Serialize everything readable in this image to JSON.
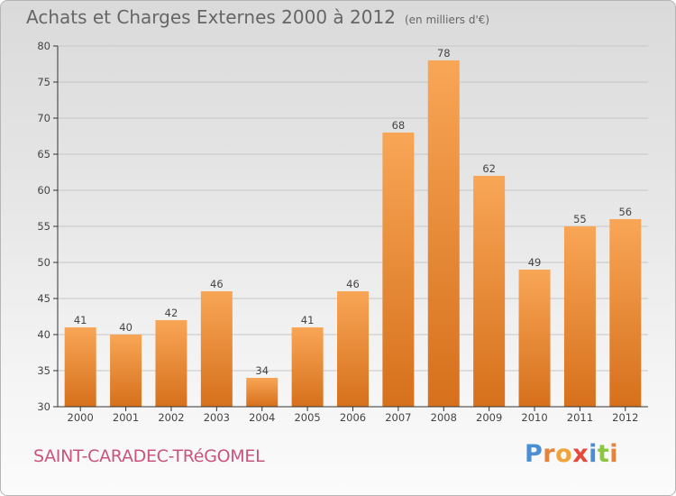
{
  "header": {
    "title": "Achats et Charges Externes 2000 à 2012",
    "subtitle": "(en milliers d'€)"
  },
  "footer": {
    "commune": "SAINT-CARADEC-TRéGOMEL",
    "brand": "Proxiti",
    "brand_letters": [
      {
        "ch": "P",
        "color": "#4a8fd6"
      },
      {
        "ch": "r",
        "color": "#e8823a"
      },
      {
        "ch": "o",
        "color": "#f0a33a"
      },
      {
        "ch": "x",
        "color": "#e6483c"
      },
      {
        "ch": "i",
        "color": "#4a8fd6"
      },
      {
        "ch": "t",
        "color": "#8cc63f"
      },
      {
        "ch": "i",
        "color": "#e8823a"
      }
    ]
  },
  "colors": {
    "bar_light": "#f8a656",
    "bar_dark": "#d6701c",
    "grid": "#c6c6c6",
    "axis": "#333333",
    "text": "#444444"
  },
  "chart_data": {
    "type": "bar",
    "title": "Achats et Charges Externes 2000 à 2012",
    "subtitle": "(en milliers d'€)",
    "categories": [
      "2000",
      "2001",
      "2002",
      "2003",
      "2004",
      "2005",
      "2006",
      "2007",
      "2008",
      "2009",
      "2010",
      "2011",
      "2012"
    ],
    "values": [
      41,
      40,
      42,
      46,
      34,
      41,
      46,
      68,
      78,
      62,
      49,
      55,
      56
    ],
    "ylim": [
      30,
      80
    ],
    "yticks": [
      30,
      35,
      40,
      45,
      50,
      55,
      60,
      65,
      70,
      75,
      80
    ],
    "grid": true,
    "data_labels": true
  }
}
